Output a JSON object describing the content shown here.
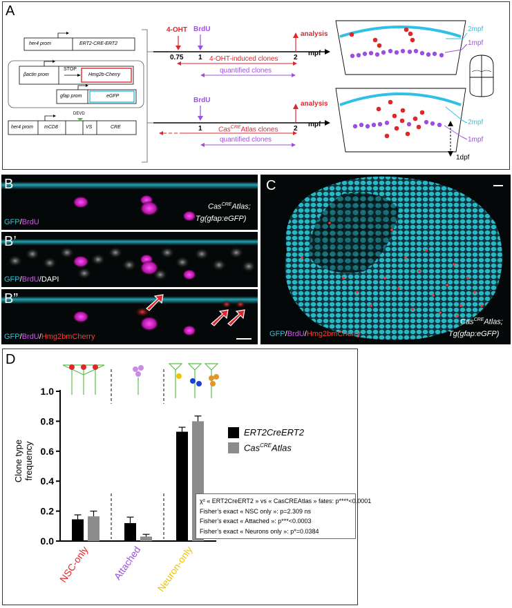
{
  "panelA": {
    "label": "A",
    "constructs": {
      "her4_prom": "her4 prom",
      "ert2": "ERT2-CRE-ERT2",
      "bactin": "βactin prom",
      "stop": "STOP",
      "hmg2b": "Hmg2b-Cherry",
      "gfap": "gfap prom",
      "egfp": "eGFP",
      "her4_prom2": "her4 prom",
      "mcd8": "mCD8",
      "devd": "DEVD",
      "vs": "VS",
      "cre": "CRE"
    },
    "timeline1": {
      "ohtt": "4-OHT",
      "brdu": "BrdU",
      "analysis": "analysis",
      "t075": "0.75",
      "t1": "1",
      "t2": "2",
      "unit": "mpf",
      "clones": "4-OHT-induced clones",
      "quantified": "quantified clones"
    },
    "timeline2": {
      "brdu": "BrdU",
      "analysis": "analysis",
      "t1": "1",
      "t2": "2",
      "unit": "mpf",
      "clones_pre": "Cas",
      "clones_sup": "CRE",
      "clones_post": "Atlas clones",
      "quantified": "quantified clones"
    },
    "schema": {
      "mpf2_top": "2mpf",
      "mpf1_top": "1mpf",
      "mpf2_bot": "2mpf",
      "mpf1_bot": "1mpf",
      "dpf1": "1dpf"
    }
  },
  "panelB": {
    "label_b": "B",
    "label_b1": "B’",
    "label_b2": "B”",
    "title_line1_pre": "Cas",
    "title_line1_sup": "CRE",
    "title_line1_post": "Atlas;",
    "title_line2": "Tg(gfap:eGFP)",
    "gfp": "GFP",
    "slash": "/",
    "brdu": "BrdU",
    "dapi": "DAPI",
    "hmg": "Hmg2bmCherry"
  },
  "panelC": {
    "label": "C",
    "gfp": "GFP",
    "slash": "/",
    "brdu": "BrdU",
    "hmg": "Hmg2bmCherry",
    "title_line1_pre": "Cas",
    "title_line1_sup": "CRE",
    "title_line1_post": "Atlas;",
    "title_line2": "Tg(gfap:eGFP)"
  },
  "panelD": {
    "label": "D",
    "legend": [
      {
        "pre": "ERT2CreERT2",
        "sup": "",
        "post": "",
        "color": "#000000"
      },
      {
        "pre": "Cas",
        "sup": "CRE",
        "post": "Atlas",
        "color": "#8c8c8c"
      }
    ],
    "stats": [
      "χ² « ERT2CreERT2 » vs « CasCREAtlas » fates: p****<0.0001",
      "Fisher’s exact « NSC only »: p=2.309 ns",
      "Fisher’s exact « Attached »: p***<0.0003",
      "Fisher’s exact « Neurons only »: p*=0.0384"
    ]
  },
  "chart_data": {
    "type": "bar",
    "ylabel": "Clone type frequency",
    "xlabel": "",
    "ylim": [
      0,
      1.0
    ],
    "yticks": [
      "0.0",
      "0.2",
      "0.4",
      "0.6",
      "0.8",
      "1.0"
    ],
    "categories": [
      "NSC-only",
      "Attached",
      "Neuron-only"
    ],
    "category_colors": [
      "#e0262b",
      "#9b4fe0",
      "#f2c200"
    ],
    "series": [
      {
        "name": "ERT2CreERT2",
        "color": "#000000",
        "values": [
          0.145,
          0.12,
          0.73
        ],
        "errors": [
          0.03,
          0.04,
          0.03
        ]
      },
      {
        "name": "CasCREAtlas",
        "color": "#8c8c8c",
        "values": [
          0.165,
          0.03,
          0.8
        ],
        "errors": [
          0.035,
          0.015,
          0.035
        ]
      }
    ]
  }
}
